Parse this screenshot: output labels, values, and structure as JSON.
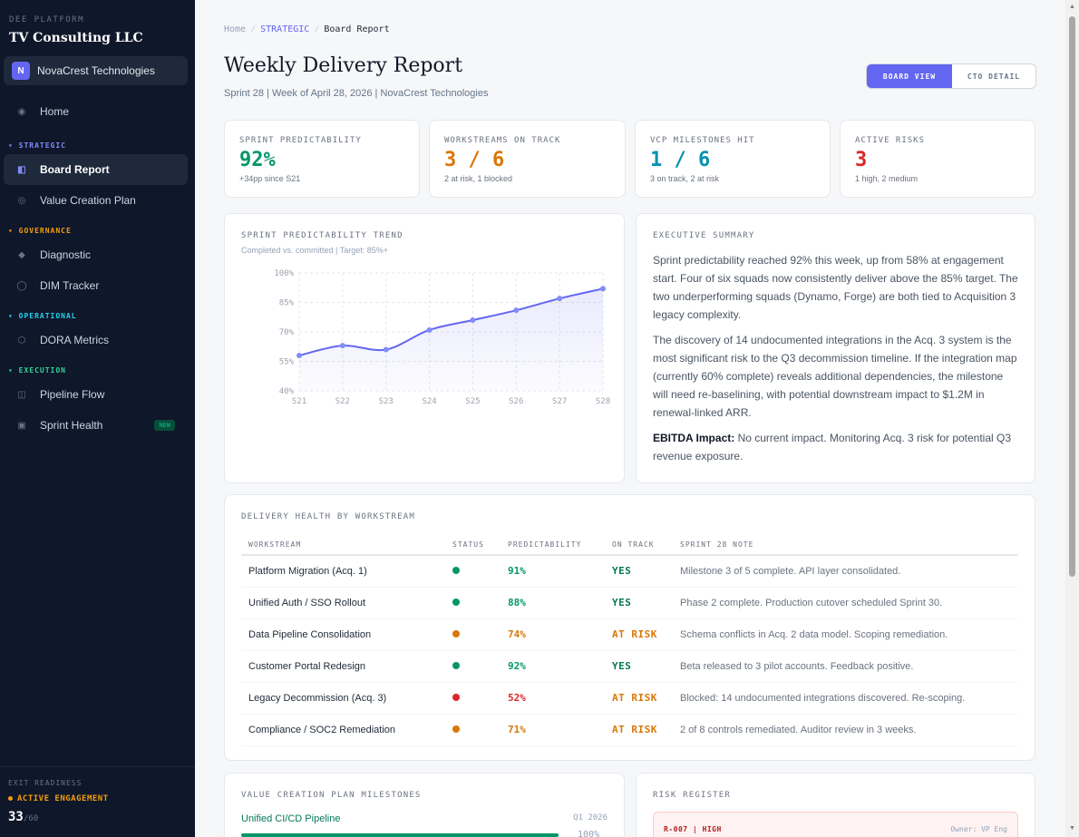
{
  "sidebar": {
    "platform": "DEE PLATFORM",
    "brand": "TV Consulting LLC",
    "org_badge": "N",
    "org_name": "NovaCrest Technologies",
    "home": "Home",
    "sections": {
      "strategic": "STRATEGIC",
      "governance": "GOVERNANCE",
      "operational": "OPERATIONAL",
      "execution": "EXECUTION"
    },
    "items": {
      "board_report": "Board Report",
      "value_creation_plan": "Value Creation Plan",
      "diagnostic": "Diagnostic",
      "dim_tracker": "DIM Tracker",
      "dora_metrics": "DORA Metrics",
      "pipeline_flow": "Pipeline Flow",
      "sprint_health": "Sprint Health"
    },
    "new_badge": "NEW",
    "footer": {
      "label": "EXIT READINESS",
      "status": "ACTIVE ENGAGEMENT",
      "score": "33",
      "score_max": "/60"
    },
    "section_colors": {
      "strategic": "#818cf8",
      "governance": "#f59e0b",
      "operational": "#22d3ee",
      "execution": "#34d399"
    }
  },
  "breadcrumb": {
    "home": "Home",
    "section": "STRATEGIC",
    "current": "Board Report"
  },
  "page": {
    "title": "Weekly Delivery Report",
    "subtitle": "Sprint 28 | Week of April 28, 2026 | NovaCrest Technologies"
  },
  "view_toggle": {
    "board": "BOARD VIEW",
    "cto": "CTO DETAIL"
  },
  "kpis": [
    {
      "label": "SPRINT PREDICTABILITY",
      "value": "92%",
      "sub": "+34pp since S21",
      "color": "#059669"
    },
    {
      "label": "WORKSTREAMS ON TRACK",
      "value": "3 / 6",
      "sub": "2 at risk, 1 blocked",
      "color": "#d97706"
    },
    {
      "label": "VCP MILESTONES HIT",
      "value": "1 / 6",
      "sub": "3 on track, 2 at risk",
      "color": "#0891b2"
    },
    {
      "label": "ACTIVE RISKS",
      "value": "3",
      "sub": "1 high, 2 medium",
      "color": "#dc2626"
    }
  ],
  "trend": {
    "title": "SPRINT PREDICTABILITY TREND",
    "subtitle": "Completed vs. committed | Target: 85%+"
  },
  "chart_data": {
    "type": "area",
    "categories": [
      "S21",
      "S22",
      "S23",
      "S24",
      "S25",
      "S26",
      "S27",
      "S28"
    ],
    "values": [
      58,
      63,
      61,
      71,
      76,
      81,
      87,
      92
    ],
    "yticks": [
      "100%",
      "85%",
      "70%",
      "55%",
      "40%"
    ],
    "ylim": [
      40,
      100
    ],
    "grid": true,
    "line_color": "#6366f1"
  },
  "summary": {
    "title": "EXECUTIVE SUMMARY",
    "p1": "Sprint predictability reached 92% this week, up from 58% at engagement start. Four of six squads now consistently deliver above the 85% target. The two underperforming squads (Dynamo, Forge) are both tied to Acquisition 3 legacy complexity.",
    "p2": "The discovery of 14 undocumented integrations in the Acq. 3 system is the most significant risk to the Q3 decommission timeline. If the integration map (currently 60% complete) reveals additional dependencies, the milestone will need re-baselining, with potential downstream impact to $1.2M in renewal-linked ARR.",
    "ebitda_label": "EBITDA Impact:",
    "ebitda_text": " No current impact. Monitoring Acq. 3 risk for potential Q3 revenue exposure."
  },
  "workstreams": {
    "title": "DELIVERY HEALTH BY WORKSTREAM",
    "headers": [
      "WORKSTREAM",
      "STATUS",
      "PREDICTABILITY",
      "ON TRACK",
      "SPRINT 28 NOTE"
    ],
    "rows": [
      {
        "name": "Platform Migration (Acq. 1)",
        "status_color": "#059669",
        "pred": "91%",
        "pred_color": "#059669",
        "on_track": "YES",
        "track_color": "#047857",
        "note": "Milestone 3 of 5 complete. API layer consolidated."
      },
      {
        "name": "Unified Auth / SSO Rollout",
        "status_color": "#059669",
        "pred": "88%",
        "pred_color": "#059669",
        "on_track": "YES",
        "track_color": "#047857",
        "note": "Phase 2 complete. Production cutover scheduled Sprint 30."
      },
      {
        "name": "Data Pipeline Consolidation",
        "status_color": "#d97706",
        "pred": "74%",
        "pred_color": "#d97706",
        "on_track": "AT RISK",
        "track_color": "#d97706",
        "note": "Schema conflicts in Acq. 2 data model. Scoping remediation."
      },
      {
        "name": "Customer Portal Redesign",
        "status_color": "#059669",
        "pred": "92%",
        "pred_color": "#059669",
        "on_track": "YES",
        "track_color": "#047857",
        "note": "Beta released to 3 pilot accounts. Feedback positive."
      },
      {
        "name": "Legacy Decommission (Acq. 3)",
        "status_color": "#dc2626",
        "pred": "52%",
        "pred_color": "#dc2626",
        "on_track": "AT RISK",
        "track_color": "#d97706",
        "note": "Blocked: 14 undocumented integrations discovered. Re-scoping."
      },
      {
        "name": "Compliance / SOC2 Remediation",
        "status_color": "#d97706",
        "pred": "71%",
        "pred_color": "#d97706",
        "on_track": "AT RISK",
        "track_color": "#d97706",
        "note": "2 of 8 controls remediated. Auditor review in 3 weeks."
      }
    ]
  },
  "milestones": {
    "title": "VALUE CREATION PLAN MILESTONES",
    "first": {
      "name": "Unified CI/CD Pipeline",
      "quarter": "Q1 2026",
      "pct": "100%",
      "progress": 100
    }
  },
  "risks": {
    "title": "RISK REGISTER",
    "first": {
      "id": "R-007 | HIGH",
      "owner": "Owner: VP Eng"
    }
  }
}
